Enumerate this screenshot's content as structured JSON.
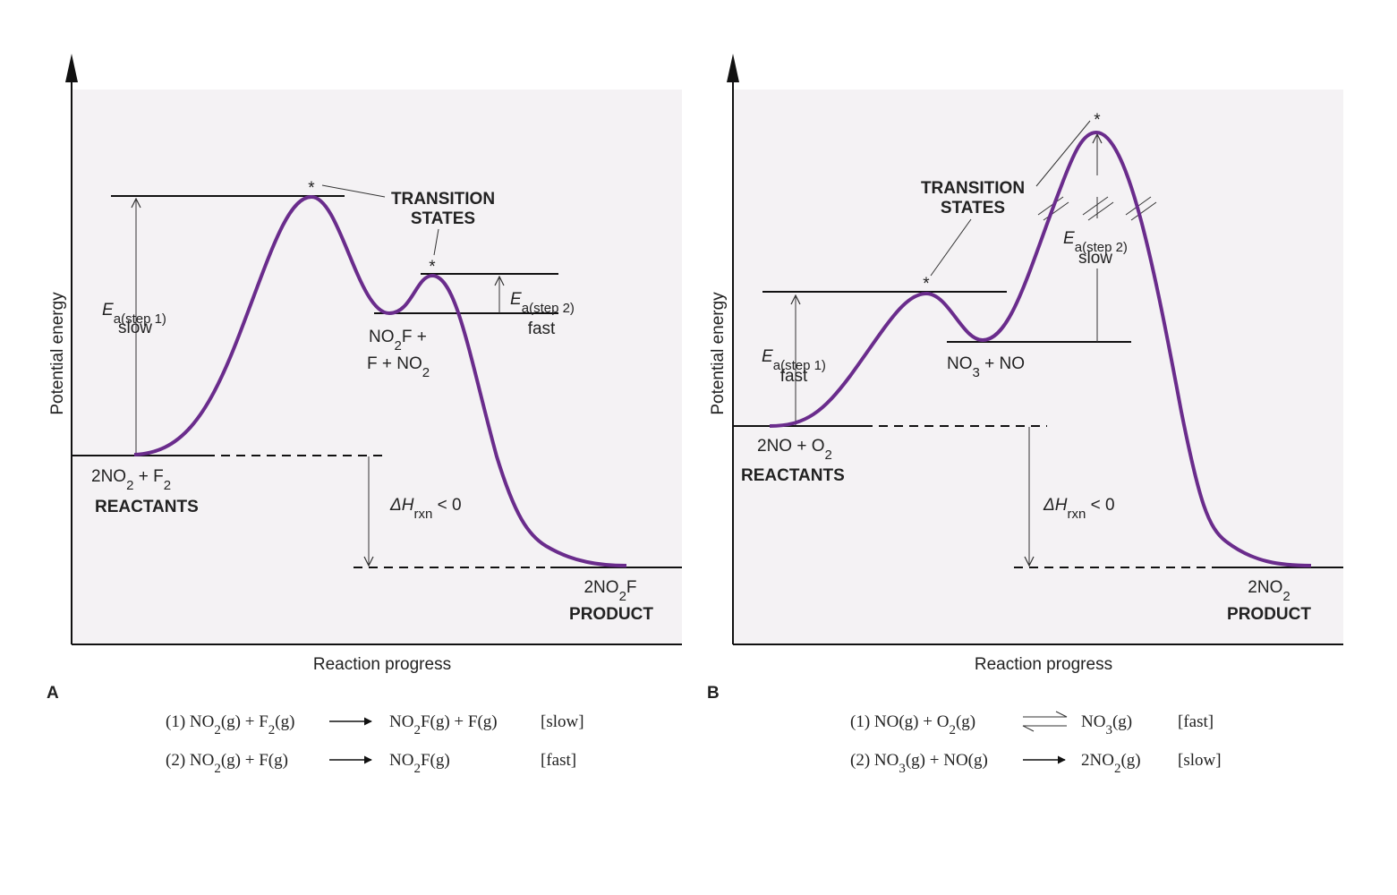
{
  "panels": [
    {
      "label": "A",
      "y_axis": "Potential energy",
      "x_axis": "Reaction progress",
      "transition_states": [
        "TRANSITION",
        "STATES"
      ],
      "ts_markers": [
        "*",
        "*"
      ],
      "ea_step1": [
        "E",
        "a(step 1)"
      ],
      "ea_step1_rate": "slow",
      "ea_step2": [
        "E",
        "a(step 2)"
      ],
      "ea_step2_rate": "fast",
      "intermediate": [
        [
          "NO",
          "2",
          "F +"
        ],
        [
          "F + NO",
          "2"
        ]
      ],
      "reactants": [
        "2NO",
        "2",
        " + F",
        "2"
      ],
      "reactants_label": "REACTANTS",
      "delta_h": [
        "ΔH",
        "rxn",
        " < 0"
      ],
      "product": [
        "2NO",
        "2",
        "F"
      ],
      "product_label": "PRODUCT",
      "equations": [
        {
          "lhs": [
            "(1) NO",
            "2",
            "(g) + F",
            "2",
            "(g)"
          ],
          "rhs": [
            "NO",
            "2",
            "F(g) + F(g)"
          ],
          "rate": "[slow]"
        },
        {
          "lhs": [
            "(2) NO",
            "2",
            "(g) + F(g)"
          ],
          "rhs": [
            "NO",
            "2",
            "F(g)"
          ],
          "rate": "[fast]"
        }
      ]
    },
    {
      "label": "B",
      "y_axis": "Potential energy",
      "x_axis": "Reaction progress",
      "transition_states": [
        "TRANSITION",
        "STATES"
      ],
      "ts_markers": [
        "*",
        "*"
      ],
      "ea_step1": [
        "E",
        "a(step 1)"
      ],
      "ea_step1_rate": "fast",
      "ea_step2": [
        "E",
        "a(step 2)"
      ],
      "ea_step2_rate": "slow",
      "intermediate": [
        [
          "NO",
          "3",
          " + NO"
        ]
      ],
      "reactants": [
        "2NO + O",
        "2"
      ],
      "reactants_label": "REACTANTS",
      "delta_h": [
        "ΔH",
        "rxn",
        " < 0"
      ],
      "product": [
        "2NO",
        "2"
      ],
      "product_label": "PRODUCT",
      "equations": [
        {
          "lhs": [
            "(1) NO(g) + O",
            "2",
            "(g)"
          ],
          "rhs": [
            "NO",
            "3",
            "(g)"
          ],
          "rate": "[fast]"
        },
        {
          "lhs": [
            "(2) NO",
            "3",
            "(g) + NO(g)"
          ],
          "rhs": [
            "2NO",
            "2",
            "(g)"
          ],
          "rate": "[slow]"
        }
      ]
    }
  ]
}
